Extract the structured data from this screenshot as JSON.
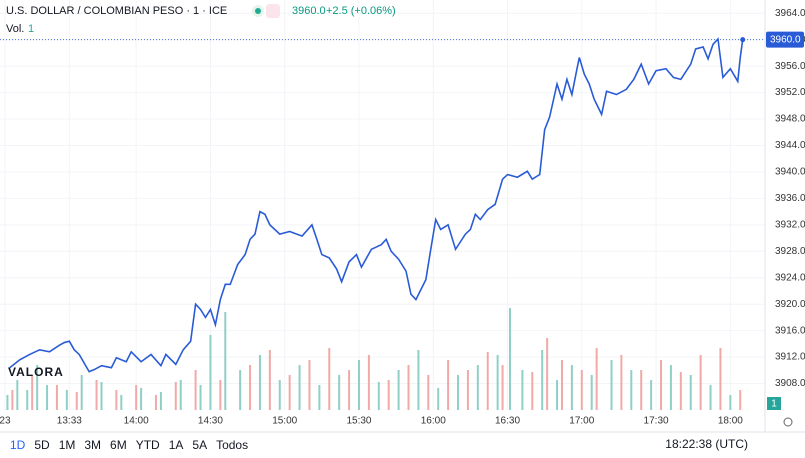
{
  "header": {
    "title": "U.S. DOLLAR / COLOMBIAN PESO · 1 · ICE",
    "price": "3960.0",
    "change": "+2.5 (+0.06%)",
    "vol_label": "Vol.",
    "vol_value": "1",
    "logo": "VALORA"
  },
  "toolbar": {
    "ranges": [
      "1D",
      "5D",
      "1M",
      "3M",
      "6M",
      "YTD",
      "1A",
      "5A",
      "Todos"
    ],
    "clock": "18:22:38 (UTC)",
    "volume_badge": "1"
  },
  "chart_data": {
    "type": "line",
    "grid": true,
    "xlim": [
      785,
      1094
    ],
    "ylim": [
      3904,
      3966
    ],
    "xticks": [
      {
        "value": 787,
        "label": "23"
      },
      {
        "value": 813,
        "label": "13:33"
      },
      {
        "value": 840,
        "label": "14:00"
      },
      {
        "value": 870,
        "label": "14:30"
      },
      {
        "value": 900,
        "label": "15:00"
      },
      {
        "value": 930,
        "label": "15:30"
      },
      {
        "value": 960,
        "label": "16:00"
      },
      {
        "value": 990,
        "label": "16:30"
      },
      {
        "value": 1020,
        "label": "17:00"
      },
      {
        "value": 1050,
        "label": "17:30"
      },
      {
        "value": 1080,
        "label": "18:00"
      }
    ],
    "yticks": [
      {
        "value": 3908,
        "label": "3908.0"
      },
      {
        "value": 3912,
        "label": "3912.0"
      },
      {
        "value": 3916,
        "label": "3916.0"
      },
      {
        "value": 3920,
        "label": "3920.0"
      },
      {
        "value": 3924,
        "label": "3924.0"
      },
      {
        "value": 3928,
        "label": "3928.0"
      },
      {
        "value": 3932,
        "label": "3932.0"
      },
      {
        "value": 3936,
        "label": "3936.0"
      },
      {
        "value": 3940,
        "label": "3940.0"
      },
      {
        "value": 3944,
        "label": "3944.0"
      },
      {
        "value": 3948,
        "label": "3948.0"
      },
      {
        "value": 3952,
        "label": "3952.0"
      },
      {
        "value": 3956,
        "label": "3956.0"
      },
      {
        "value": 3960,
        "label": "3960.0"
      },
      {
        "value": 3964,
        "label": "3964.0"
      }
    ],
    "price_label": {
      "value": 3960,
      "label": "3960.0"
    },
    "series": [
      {
        "color": "#2a5bd7",
        "x": [
          789,
          793,
          797,
          801,
          805,
          809,
          811,
          813,
          815,
          817,
          821,
          823,
          826,
          830,
          832,
          836,
          838,
          842,
          846,
          850,
          852,
          856,
          859,
          862,
          864,
          866,
          868,
          870,
          872,
          874,
          876,
          878,
          881,
          884,
          886,
          888,
          890,
          892,
          894,
          898,
          902,
          907,
          911,
          913,
          915,
          918,
          921,
          923,
          926,
          929,
          931,
          935,
          939,
          941,
          943,
          946,
          949,
          951,
          953,
          955,
          957,
          959,
          961,
          963,
          966,
          969,
          973,
          975,
          977,
          979,
          982,
          985,
          988,
          990,
          994,
          998,
          1000,
          1003,
          1005,
          1007,
          1010,
          1012,
          1014,
          1016,
          1018,
          1019,
          1021,
          1023,
          1025,
          1028,
          1030,
          1034,
          1038,
          1041,
          1044,
          1047,
          1050,
          1054,
          1057,
          1060,
          1064,
          1066,
          1069,
          1071,
          1073,
          1075,
          1077,
          1080,
          1083,
          1084,
          1085
        ],
        "values": [
          3910.4,
          3911.6,
          3912.4,
          3913.1,
          3912.8,
          3913.8,
          3914.2,
          3914.4,
          3913.1,
          3912.4,
          3909.8,
          3910.1,
          3910.7,
          3910.4,
          3911.9,
          3911.3,
          3912.8,
          3911.3,
          3912.4,
          3910.7,
          3912.4,
          3910.9,
          3913.1,
          3914.4,
          3920,
          3919.2,
          3918,
          3919.2,
          3916.9,
          3920.7,
          3923,
          3923,
          3926,
          3927.5,
          3929.8,
          3930.6,
          3934,
          3933.6,
          3932,
          3930.6,
          3931,
          3930.3,
          3932,
          3929.8,
          3927.5,
          3927,
          3925.3,
          3923.4,
          3926.4,
          3927.5,
          3925.6,
          3928.3,
          3929,
          3929.8,
          3928,
          3926.8,
          3925,
          3921.5,
          3920.7,
          3922.2,
          3923.7,
          3928.3,
          3932.8,
          3931.3,
          3932,
          3928.3,
          3930.6,
          3931.3,
          3933.6,
          3932.8,
          3934.3,
          3935.1,
          3938.9,
          3939.6,
          3939.2,
          3940.1,
          3938.9,
          3939.6,
          3946.4,
          3948.3,
          3953.3,
          3951,
          3954,
          3951.7,
          3955.5,
          3957.3,
          3954.8,
          3953.3,
          3951,
          3948.7,
          3952.2,
          3951.7,
          3952.5,
          3954,
          3956.3,
          3953.3,
          3955.3,
          3955.6,
          3954.3,
          3954,
          3956.3,
          3958.6,
          3958.9,
          3957.1,
          3959.3,
          3960.1,
          3954.3,
          3955.6,
          3953.7,
          3957.3,
          3960
        ]
      }
    ],
    "volume_lim": [
      0,
      110
    ],
    "volume": [
      {
        "color": "#8fd0c6",
        "x": [
          788,
          792,
          796,
          800,
          804,
          812,
          818,
          826,
          834,
          842,
          850,
          858,
          866,
          870,
          876,
          882,
          890,
          898,
          906,
          914,
          922,
          930,
          938,
          946,
          954,
          962,
          970,
          978,
          986,
          991,
          996,
          1004,
          1010,
          1016,
          1024,
          1032,
          1040,
          1048,
          1056,
          1064,
          1072,
          1080
        ],
        "values": [
          15,
          30,
          20,
          45,
          25,
          20,
          35,
          28,
          15,
          22,
          18,
          30,
          25,
          75,
          98,
          40,
          55,
          30,
          45,
          25,
          35,
          50,
          28,
          40,
          60,
          22,
          35,
          45,
          55,
          102,
          40,
          60,
          30,
          45,
          35,
          50,
          40,
          30,
          45,
          35,
          25,
          15
        ]
      },
      {
        "color": "#f2a9a6",
        "x": [
          790,
          798,
          808,
          816,
          824,
          832,
          840,
          848,
          856,
          864,
          874,
          886,
          894,
          902,
          910,
          918,
          926,
          934,
          942,
          950,
          958,
          966,
          974,
          982,
          988,
          1000,
          1006,
          1012,
          1020,
          1026,
          1036,
          1044,
          1052,
          1060,
          1068,
          1076,
          1084
        ],
        "values": [
          20,
          35,
          25,
          18,
          30,
          20,
          25,
          15,
          28,
          40,
          30,
          45,
          60,
          35,
          50,
          62,
          40,
          55,
          30,
          45,
          35,
          50,
          40,
          58,
          45,
          38,
          72,
          50,
          40,
          62,
          55,
          40,
          50,
          38,
          55,
          62,
          20
        ]
      }
    ]
  }
}
